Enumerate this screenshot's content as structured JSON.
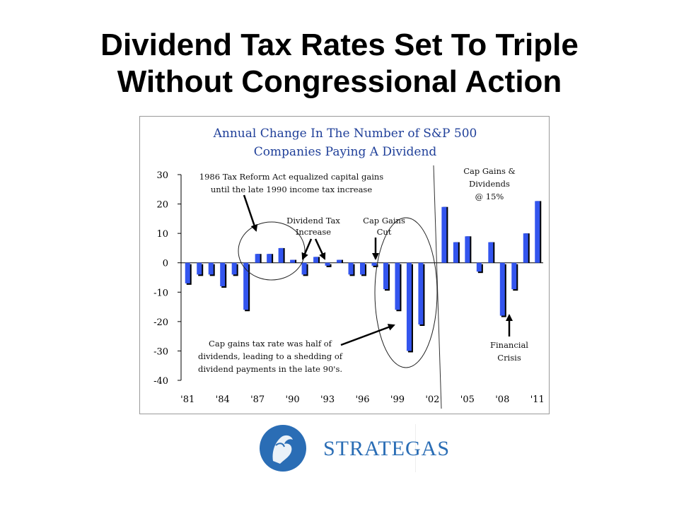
{
  "slide": {
    "title_line1": "Dividend Tax Rates Set To Triple",
    "title_line2": "Without Congressional Action"
  },
  "chart_data": {
    "type": "bar",
    "title": [
      "Annual Change In The Number of S&P 500",
      "Companies Paying A Dividend"
    ],
    "title_color": "#1f3f99",
    "bar_color": "#3355ee",
    "bar_shadow_color": "#000000",
    "ylim": [
      -40,
      30
    ],
    "yticks": [
      30,
      20,
      10,
      0,
      -10,
      -20,
      -30,
      -40
    ],
    "xtick_labels": [
      "'81",
      "'84",
      "'87",
      "'90",
      "'93",
      "'96",
      "'99",
      "'02",
      "'05",
      "'08",
      "'11"
    ],
    "categories": [
      "1981",
      "1982",
      "1983",
      "1984",
      "1985",
      "1986",
      "1987",
      "1988",
      "1989",
      "1990",
      "1991",
      "1992",
      "1993",
      "1994",
      "1995",
      "1996",
      "1997",
      "1998",
      "1999",
      "2000",
      "2001",
      "2002",
      "2003",
      "2004",
      "2005",
      "2006",
      "2007",
      "2008",
      "2009",
      "2010",
      "2011"
    ],
    "values": [
      -7,
      -4,
      -4,
      -8,
      -4,
      -16,
      3,
      3,
      5,
      1,
      -4,
      2,
      -1,
      1,
      -4,
      -4,
      -1,
      -9,
      -16,
      -30,
      -21,
      0,
      19,
      7,
      9,
      -3,
      7,
      -18,
      -9,
      10,
      21
    ],
    "annotations": [
      {
        "lines": [
          "1986 Tax Reform Act equalized capital gains",
          "until the late 1990 income tax increase"
        ]
      },
      {
        "lines": [
          "Dividend Tax",
          "Increase"
        ]
      },
      {
        "lines": [
          "Cap Gains",
          "Cut"
        ]
      },
      {
        "lines": [
          "Cap Gains &",
          "Dividends",
          "@ 15%"
        ]
      },
      {
        "lines": [
          "Cap gains tax rate was half of",
          "dividends, leading to a shedding of",
          "dividend payments in the late 90's."
        ]
      },
      {
        "lines": [
          "Financial",
          "Crisis"
        ]
      }
    ]
  },
  "logo": {
    "name": "STRATEGAS",
    "color": "#2a6db5"
  }
}
